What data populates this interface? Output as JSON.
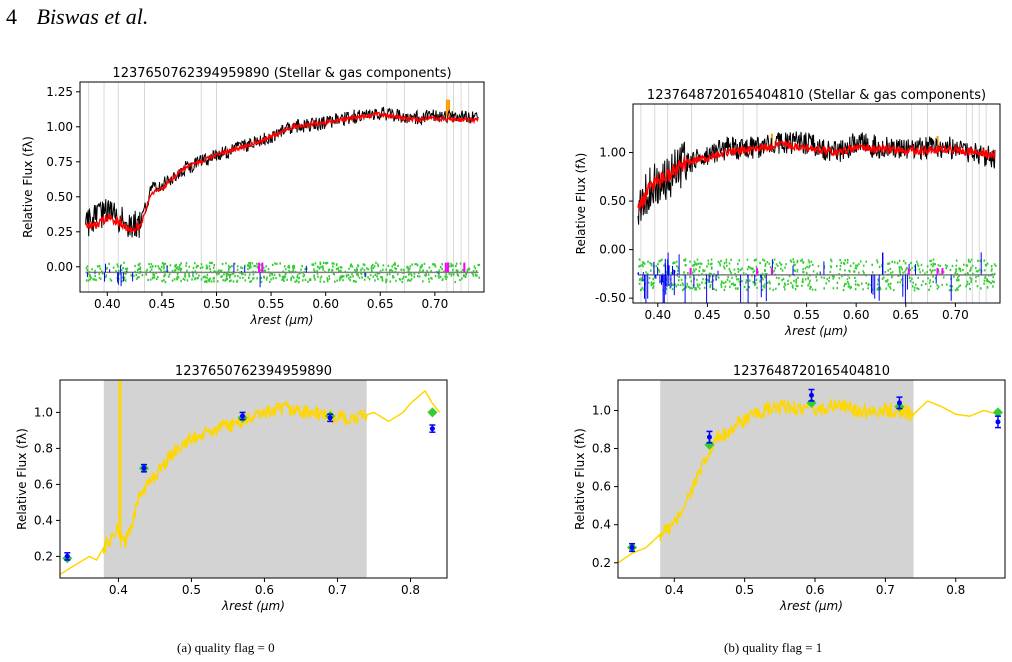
{
  "header": {
    "page_number": "4",
    "authors": "Biswas et al."
  },
  "captions": [
    "(a) quality flag = 0",
    "(b) quality flag = 1"
  ],
  "colors": {
    "observed": "#000000",
    "model": "#ff0000",
    "residual": "#33cc33",
    "emission": "#0000ff",
    "lines": "#ff00ff",
    "sky": "#ff9900",
    "photometry_spectrum": "#ffd700",
    "coverage": "#d3d3d3",
    "photometry_points": "#0000ff",
    "synthetic_points": "#33cc33"
  },
  "chart_data": [
    {
      "type": "line",
      "title": "1237650762394959890 (Stellar & gas components)",
      "xlabel": "λrest (μm)",
      "ylabel": "Relative Flux (fλ)",
      "xlim": [
        0.375,
        0.745
      ],
      "ylim": [
        -0.18,
        1.32
      ],
      "xticks": [
        0.4,
        0.45,
        0.5,
        0.55,
        0.6,
        0.65,
        0.7
      ],
      "yticks": [
        0.0,
        0.25,
        0.5,
        0.75,
        1.0,
        1.25
      ],
      "series": [
        {
          "color": "#000000",
          "x": [
            0.38,
            0.39,
            0.4,
            0.41,
            0.42,
            0.43,
            0.44,
            0.45,
            0.47,
            0.5,
            0.53,
            0.55,
            0.57,
            0.6,
            0.63,
            0.65,
            0.68,
            0.7,
            0.72,
            0.74
          ],
          "y": [
            0.3,
            0.35,
            0.4,
            0.35,
            0.3,
            0.3,
            0.55,
            0.58,
            0.7,
            0.8,
            0.87,
            0.93,
            1.0,
            1.03,
            1.08,
            1.1,
            1.06,
            1.08,
            1.07,
            1.06
          ]
        },
        {
          "color": "#ff0000",
          "x": [
            0.38,
            0.39,
            0.4,
            0.41,
            0.42,
            0.43,
            0.44,
            0.45,
            0.47,
            0.5,
            0.53,
            0.55,
            0.57,
            0.6,
            0.63,
            0.65,
            0.68,
            0.7,
            0.72,
            0.74
          ],
          "y": [
            0.28,
            0.3,
            0.35,
            0.32,
            0.28,
            0.28,
            0.52,
            0.56,
            0.7,
            0.8,
            0.87,
            0.93,
            1.0,
            1.03,
            1.07,
            1.09,
            1.05,
            1.06,
            1.05,
            1.05
          ]
        },
        {
          "color": "#808080",
          "x": [
            0.38,
            0.74
          ],
          "y": [
            -0.04,
            -0.04
          ]
        }
      ]
    },
    {
      "type": "line",
      "title": "1237648720165404810 (Stellar & gas components)",
      "xlabel": "λrest (μm)",
      "ylabel": "Relative Flux (fλ)",
      "xlim": [
        0.375,
        0.745
      ],
      "ylim": [
        -0.55,
        1.5
      ],
      "xticks": [
        0.4,
        0.45,
        0.5,
        0.55,
        0.6,
        0.65,
        0.7
      ],
      "yticks": [
        -0.5,
        0.0,
        0.5,
        1.0
      ],
      "series": [
        {
          "color": "#000000",
          "x": [
            0.38,
            0.39,
            0.4,
            0.41,
            0.42,
            0.43,
            0.45,
            0.47,
            0.5,
            0.53,
            0.55,
            0.58,
            0.6,
            0.63,
            0.66,
            0.68,
            0.7,
            0.72,
            0.74
          ],
          "y": [
            0.4,
            0.6,
            0.7,
            0.75,
            0.85,
            0.9,
            0.95,
            1.05,
            1.05,
            1.1,
            1.1,
            1.0,
            1.1,
            1.05,
            1.05,
            1.05,
            1.05,
            1.0,
            0.95
          ]
        },
        {
          "color": "#ff0000",
          "x": [
            0.38,
            0.39,
            0.4,
            0.41,
            0.42,
            0.43,
            0.45,
            0.47,
            0.5,
            0.53,
            0.55,
            0.58,
            0.6,
            0.63,
            0.66,
            0.68,
            0.7,
            0.72,
            0.74
          ],
          "y": [
            0.4,
            0.6,
            0.7,
            0.75,
            0.85,
            0.9,
            0.95,
            1.0,
            1.05,
            1.08,
            1.05,
            1.0,
            1.05,
            1.03,
            1.02,
            1.03,
            1.03,
            1.0,
            0.98
          ]
        },
        {
          "color": "#808080",
          "x": [
            0.38,
            0.74
          ],
          "y": [
            -0.26,
            -0.26
          ]
        }
      ]
    },
    {
      "type": "scatter",
      "title": "1237650762394959890",
      "xlabel": "λrest (μm)",
      "ylabel": "Relative Flux (fλ)",
      "xlim": [
        0.32,
        0.85
      ],
      "ylim": [
        0.08,
        1.18
      ],
      "xticks": [
        0.4,
        0.5,
        0.6,
        0.7,
        0.8
      ],
      "yticks": [
        0.2,
        0.4,
        0.6,
        0.8,
        1.0
      ],
      "shaded_range": [
        0.38,
        0.74
      ],
      "spectrum": {
        "x": [
          0.32,
          0.34,
          0.36,
          0.37,
          0.38,
          0.39,
          0.4,
          0.41,
          0.42,
          0.43,
          0.44,
          0.46,
          0.48,
          0.5,
          0.53,
          0.57,
          0.6,
          0.63,
          0.66,
          0.69,
          0.72,
          0.75,
          0.77,
          0.79,
          0.8,
          0.82,
          0.83,
          0.84
        ],
        "y": [
          0.1,
          0.15,
          0.2,
          0.18,
          0.25,
          0.3,
          0.35,
          0.28,
          0.4,
          0.55,
          0.6,
          0.7,
          0.8,
          0.85,
          0.9,
          0.95,
          1.0,
          1.02,
          1.0,
          0.98,
          0.96,
          1.0,
          0.95,
          1.0,
          1.05,
          1.12,
          1.05,
          1.0
        ]
      },
      "photometry": {
        "x": [
          0.33,
          0.435,
          0.57,
          0.69,
          0.83
        ],
        "y": [
          0.2,
          0.69,
          0.98,
          0.97,
          0.91
        ],
        "err": [
          0.02,
          0.02,
          0.02,
          0.02,
          0.02
        ]
      },
      "synthetic": {
        "x": [
          0.33,
          0.435,
          0.57,
          0.69,
          0.83
        ],
        "y": [
          0.19,
          0.69,
          0.97,
          0.98,
          1.0
        ]
      }
    },
    {
      "type": "scatter",
      "title": "1237648720165404810",
      "xlabel": "λrest (μm)",
      "ylabel": "Relative Flux (fλ)",
      "xlim": [
        0.32,
        0.87
      ],
      "ylim": [
        0.12,
        1.16
      ],
      "xticks": [
        0.4,
        0.5,
        0.6,
        0.7,
        0.8
      ],
      "yticks": [
        0.2,
        0.4,
        0.6,
        0.8,
        1.0
      ],
      "shaded_range": [
        0.38,
        0.74
      ],
      "spectrum": {
        "x": [
          0.32,
          0.34,
          0.36,
          0.38,
          0.4,
          0.42,
          0.44,
          0.46,
          0.48,
          0.5,
          0.53,
          0.56,
          0.6,
          0.63,
          0.66,
          0.69,
          0.72,
          0.74,
          0.76,
          0.78,
          0.8,
          0.82,
          0.84,
          0.86
        ],
        "y": [
          0.2,
          0.25,
          0.28,
          0.35,
          0.4,
          0.55,
          0.7,
          0.85,
          0.9,
          0.95,
          1.0,
          1.02,
          1.0,
          1.03,
          1.0,
          1.0,
          1.0,
          0.98,
          1.05,
          1.02,
          0.98,
          0.97,
          1.0,
          0.98
        ]
      },
      "photometry": {
        "x": [
          0.34,
          0.45,
          0.595,
          0.72,
          0.86
        ],
        "y": [
          0.28,
          0.86,
          1.08,
          1.04,
          0.94
        ],
        "err": [
          0.02,
          0.03,
          0.03,
          0.03,
          0.03
        ]
      },
      "synthetic": {
        "x": [
          0.34,
          0.45,
          0.595,
          0.72,
          0.86
        ],
        "y": [
          0.28,
          0.82,
          1.04,
          1.02,
          0.99
        ]
      }
    }
  ]
}
